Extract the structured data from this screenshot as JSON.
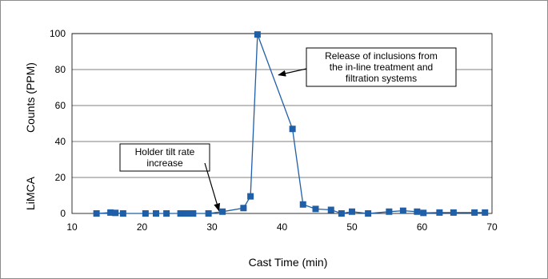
{
  "chart_data": {
    "type": "line",
    "title": "",
    "xlabel": "Cast Time (min)",
    "ylabel_parts": [
      "LiMCA",
      "Counts (PPM)"
    ],
    "xlim": [
      10,
      70
    ],
    "ylim": [
      0,
      100
    ],
    "xticks": [
      10,
      20,
      30,
      40,
      50,
      60,
      70
    ],
    "yticks": [
      0,
      20,
      40,
      60,
      80,
      100
    ],
    "grid": "horizontal",
    "legend": "none",
    "series_color": "#1f5fa8",
    "series": [
      {
        "x": [
          13.5,
          15.5,
          16.2,
          17.3,
          20.5,
          22,
          23.5,
          25.5,
          26.2,
          26.8,
          27.3,
          29.5,
          31.5,
          34.5,
          35.5,
          36.5,
          41.5,
          43,
          44.8,
          47,
          48.5,
          50,
          52.3,
          55.3,
          57.3,
          59.3,
          60.2,
          62.5,
          64.5,
          67.5,
          69
        ],
        "values": [
          0,
          0.5,
          0.3,
          0,
          0,
          0,
          0,
          0,
          0,
          0,
          0,
          0,
          1,
          3,
          9.5,
          99.5,
          47,
          5,
          2.5,
          2,
          0,
          1,
          0,
          1,
          1.5,
          1,
          0.3,
          0.5,
          0.5,
          0.5,
          0.5
        ]
      }
    ],
    "annotations": [
      {
        "lines": [
          "Holder tilt rate",
          "increase"
        ],
        "points_to": [
          31,
          1.5
        ]
      },
      {
        "lines": [
          "Release of inclusions from",
          "the in-line treatment and",
          "filtration systems"
        ],
        "points_to": [
          39.5,
          77
        ]
      }
    ]
  }
}
